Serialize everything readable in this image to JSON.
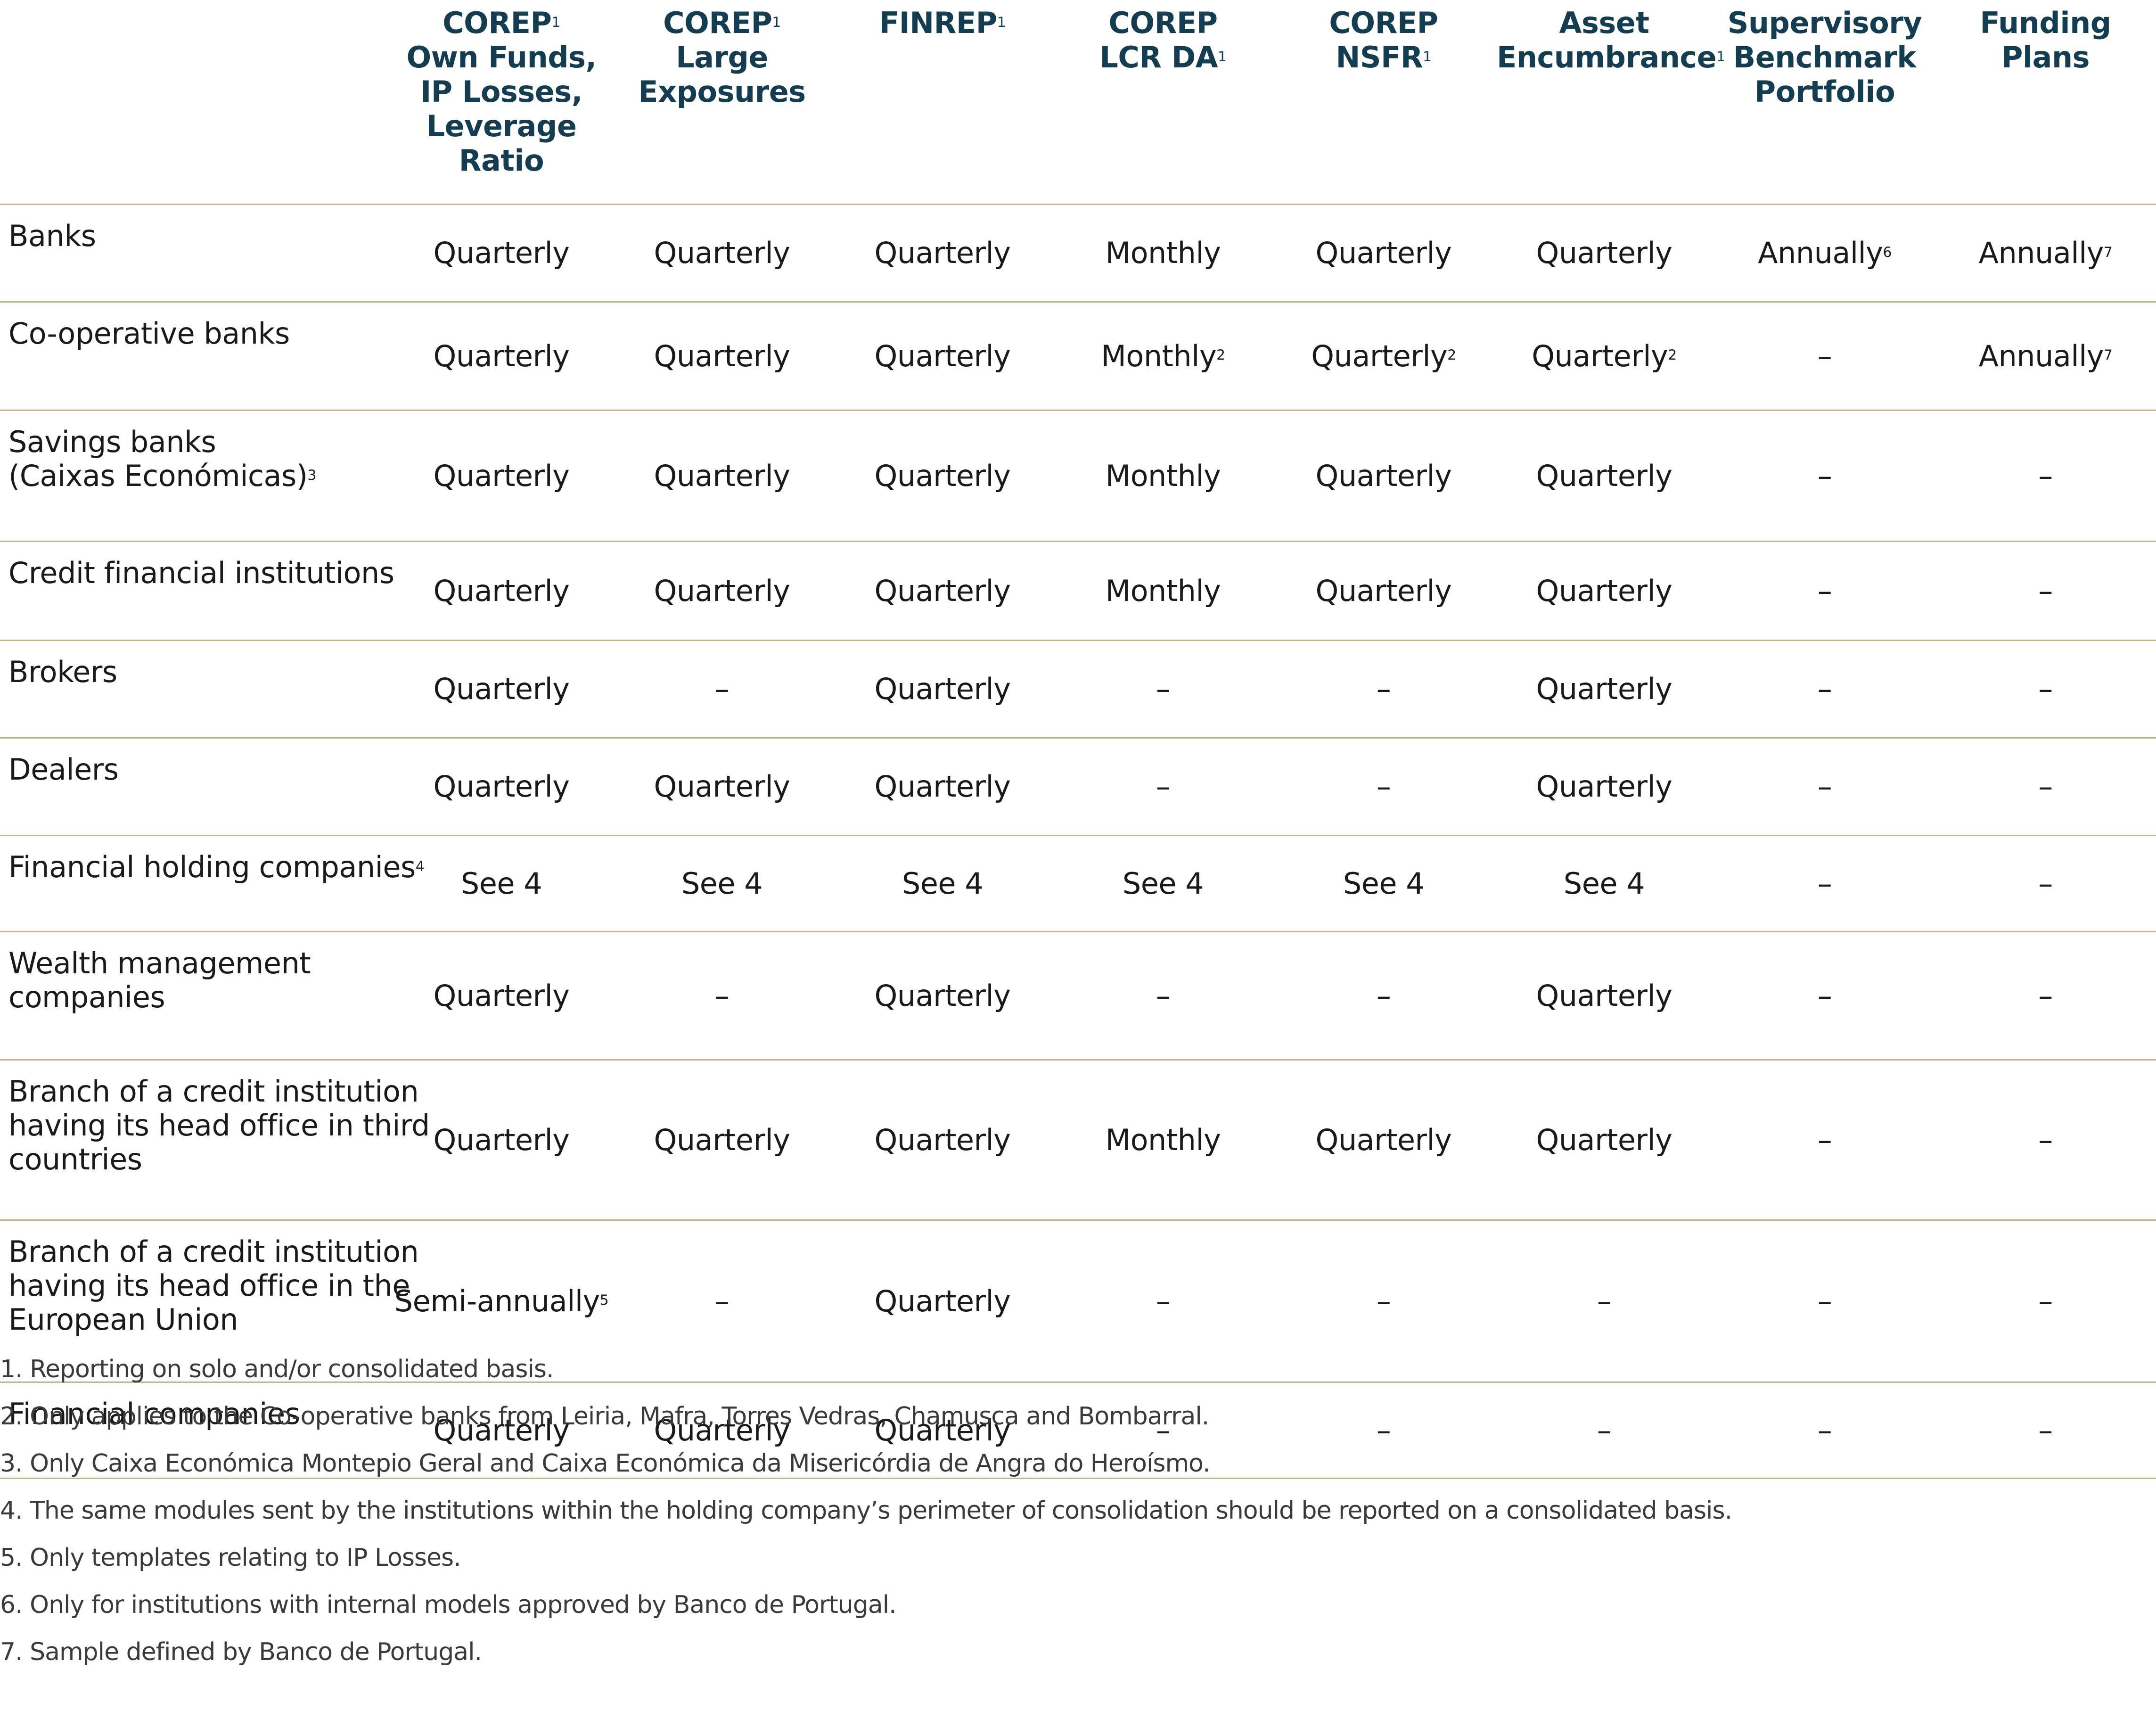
{
  "header": {
    "columns": [
      {
        "lines": [
          "COREP",
          "Own Funds,",
          "IP Losses,",
          "Leverage",
          "Ratio"
        ],
        "sup": "1"
      },
      {
        "lines": [
          "COREP",
          "Large",
          "Exposures"
        ],
        "sup": "1"
      },
      {
        "lines": [
          "FINREP"
        ],
        "sup": "1"
      },
      {
        "lines": [
          "COREP",
          "LCR DA"
        ],
        "sup": "1"
      },
      {
        "lines": [
          "COREP",
          "NSFR"
        ],
        "sup": "1"
      },
      {
        "lines": [
          "Asset",
          "Encumbrance"
        ],
        "sup": "1"
      },
      {
        "lines": [
          "Supervisory",
          "Benchmark",
          "Portfolio"
        ]
      },
      {
        "lines": [
          "Funding",
          "Plans"
        ]
      }
    ]
  },
  "rows": [
    {
      "label": [
        "Banks"
      ],
      "cells": [
        {
          "text": "Quarterly"
        },
        {
          "text": "Quarterly"
        },
        {
          "text": "Quarterly"
        },
        {
          "text": "Monthly"
        },
        {
          "text": "Quarterly"
        },
        {
          "text": "Quarterly"
        },
        {
          "text": "Annually",
          "sup": "6"
        },
        {
          "text": "Annually",
          "sup": "7"
        }
      ]
    },
    {
      "label": [
        "Co-operative banks"
      ],
      "cells": [
        {
          "text": "Quarterly"
        },
        {
          "text": "Quarterly"
        },
        {
          "text": "Quarterly"
        },
        {
          "text": "Monthly",
          "sup": "2"
        },
        {
          "text": "Quarterly",
          "sup": "2"
        },
        {
          "text": "Quarterly",
          "sup": "2"
        },
        {
          "text": "–"
        },
        {
          "text": "Annually",
          "sup": "7"
        }
      ]
    },
    {
      "label": [
        "Savings banks",
        "(Caixas Económicas)"
      ],
      "label_sup": "3",
      "cells": [
        {
          "text": "Quarterly"
        },
        {
          "text": "Quarterly"
        },
        {
          "text": "Quarterly"
        },
        {
          "text": "Monthly"
        },
        {
          "text": "Quarterly"
        },
        {
          "text": "Quarterly"
        },
        {
          "text": "–"
        },
        {
          "text": "–"
        }
      ]
    },
    {
      "label": [
        "Credit financial institutions"
      ],
      "cells": [
        {
          "text": "Quarterly"
        },
        {
          "text": "Quarterly"
        },
        {
          "text": "Quarterly"
        },
        {
          "text": "Monthly"
        },
        {
          "text": "Quarterly"
        },
        {
          "text": "Quarterly"
        },
        {
          "text": "–"
        },
        {
          "text": "–"
        }
      ]
    },
    {
      "label": [
        "Brokers"
      ],
      "cells": [
        {
          "text": "Quarterly"
        },
        {
          "text": "–"
        },
        {
          "text": "Quarterly"
        },
        {
          "text": "–"
        },
        {
          "text": "–"
        },
        {
          "text": "Quarterly"
        },
        {
          "text": "–"
        },
        {
          "text": "–"
        }
      ]
    },
    {
      "label": [
        "Dealers"
      ],
      "cells": [
        {
          "text": "Quarterly"
        },
        {
          "text": "Quarterly"
        },
        {
          "text": "Quarterly"
        },
        {
          "text": "–"
        },
        {
          "text": "–"
        },
        {
          "text": "Quarterly"
        },
        {
          "text": "–"
        },
        {
          "text": "–"
        }
      ]
    },
    {
      "label": [
        "Financial holding companies"
      ],
      "label_sup": "4",
      "cells": [
        {
          "text": "See 4"
        },
        {
          "text": "See 4"
        },
        {
          "text": "See 4"
        },
        {
          "text": "See 4"
        },
        {
          "text": "See 4"
        },
        {
          "text": "See 4"
        },
        {
          "text": "–"
        },
        {
          "text": "–"
        }
      ]
    },
    {
      "label": [
        "Wealth management",
        "companies"
      ],
      "cells": [
        {
          "text": "Quarterly"
        },
        {
          "text": "–"
        },
        {
          "text": "Quarterly"
        },
        {
          "text": "–"
        },
        {
          "text": "–"
        },
        {
          "text": "Quarterly"
        },
        {
          "text": "–"
        },
        {
          "text": "–"
        }
      ]
    },
    {
      "label": [
        "Branch of a credit institution",
        "having its head office in third",
        "countries"
      ],
      "cells": [
        {
          "text": "Quarterly"
        },
        {
          "text": "Quarterly"
        },
        {
          "text": "Quarterly"
        },
        {
          "text": "Monthly"
        },
        {
          "text": "Quarterly"
        },
        {
          "text": "Quarterly"
        },
        {
          "text": "–"
        },
        {
          "text": "–"
        }
      ]
    },
    {
      "label": [
        "Branch of a credit institution",
        "having its head office in the",
        "European Union"
      ],
      "cells": [
        {
          "text": "Semi-annually",
          "sup": "5"
        },
        {
          "text": "–"
        },
        {
          "text": "Quarterly"
        },
        {
          "text": "–"
        },
        {
          "text": "–"
        },
        {
          "text": "–"
        },
        {
          "text": "–"
        },
        {
          "text": "–"
        }
      ]
    },
    {
      "label": [
        "Financial companies"
      ],
      "cells": [
        {
          "text": "Quarterly"
        },
        {
          "text": "Quarterly"
        },
        {
          "text": "Quarterly"
        },
        {
          "text": "–"
        },
        {
          "text": "–"
        },
        {
          "text": "–"
        },
        {
          "text": "–"
        },
        {
          "text": "–"
        }
      ]
    }
  ],
  "footnotes": [
    "1. Reporting on solo and/or consolidated basis.",
    "2. Only applies to the Co-operative banks from Leiria, Mafra, Torres Vedras, Chamusca and Bombarral.",
    "3. Only Caixa Económica Montepio Geral and Caixa Económica da Misericórdia de Angra do Heroísmo.",
    "4. The same modules sent by the institutions within the holding company’s perimeter of consolidation should be reported on a consolidated basis.",
    "5. Only templates relating to IP Losses.",
    "6. Only for institutions with internal models approved by Banco de Portugal.",
    "7. Sample defined by Banco de Portugal."
  ]
}
